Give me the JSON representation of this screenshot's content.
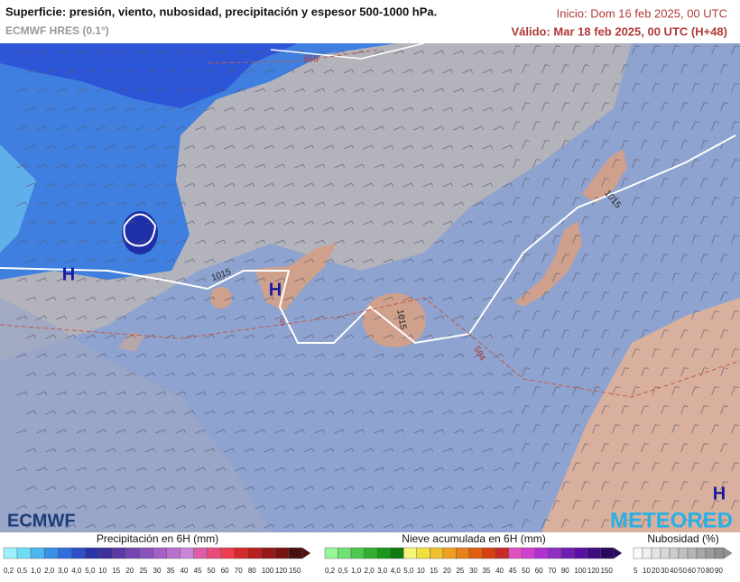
{
  "header": {
    "title": "Superficie: presión, viento, nubosidad, precipitación y espesor 500-1000 hPa.",
    "model": "ECMWF HRES (0.1°)",
    "start": "Inicio: Dom 16 feb 2025, 00 UTC",
    "valid": "Válido: Mar 18 feb 2025, 00 UTC (H+48)"
  },
  "map": {
    "labels": [
      "558",
      "1015",
      "1015",
      "1015",
      "564",
      "5"
    ],
    "highs": [
      "H",
      "H",
      "H"
    ],
    "logos": [
      "ECMWF",
      "METEORED"
    ]
  },
  "legends": [
    {
      "title": "Precipitación en 6H (mm)",
      "labels": [
        "0,2",
        "0,5",
        "1,0",
        "2,0",
        "3,0",
        "4,0",
        "5,0",
        "10",
        "15",
        "20",
        "25",
        "30",
        "35",
        "40",
        "45",
        "50",
        "60",
        "70",
        "80",
        "100",
        "120",
        "150"
      ]
    },
    {
      "title": "Nieve acumulada en 6H (mm)",
      "labels": [
        "0,2",
        "0,5",
        "1,0",
        "2,0",
        "3,0",
        "4,0",
        "5,0",
        "10",
        "15",
        "20",
        "25",
        "30",
        "35",
        "40",
        "45",
        "50",
        "60",
        "70",
        "80",
        "100",
        "120",
        "150"
      ]
    },
    {
      "title": "Nubosidad (%)",
      "labels": [
        "5",
        "10",
        "20",
        "30",
        "40",
        "50",
        "60",
        "70",
        "80",
        "90"
      ]
    }
  ]
}
